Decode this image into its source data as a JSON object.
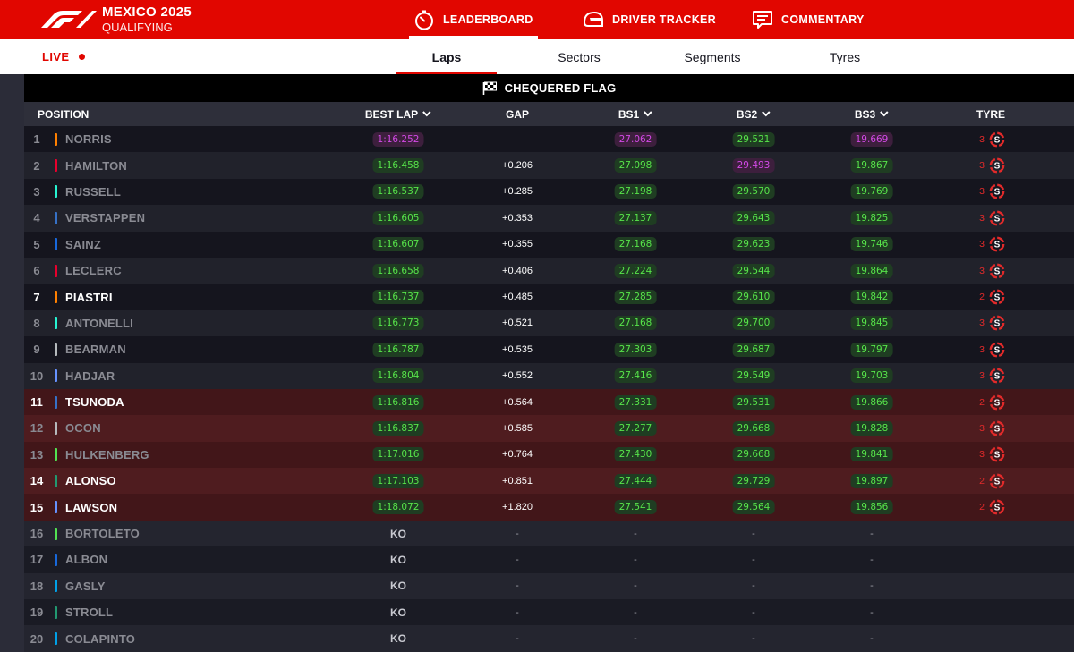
{
  "header": {
    "event_title": "MEXICO 2025",
    "session": "QUALIFYING",
    "nav": [
      {
        "label": "LEADERBOARD",
        "icon": "stopwatch-icon",
        "active": true
      },
      {
        "label": "DRIVER TRACKER",
        "icon": "helmet-icon",
        "active": false
      },
      {
        "label": "COMMENTARY",
        "icon": "chat-icon",
        "active": false
      }
    ]
  },
  "subnav": {
    "live_label": "LIVE",
    "tabs": [
      {
        "label": "Laps",
        "active": true
      },
      {
        "label": "Sectors",
        "active": false
      },
      {
        "label": "Segments",
        "active": false
      },
      {
        "label": "Tyres",
        "active": false
      }
    ]
  },
  "status": {
    "label": "CHEQUERED FLAG",
    "icon": "chequered-flag-icon"
  },
  "columns": {
    "position": "POSITION",
    "best_lap": "BEST LAP",
    "gap": "GAP",
    "bs1": "BS1",
    "bs2": "BS2",
    "bs3": "BS3",
    "tyre": "TYRE"
  },
  "colors": {
    "brand_red": "#e10600",
    "personal_best": "#57e44a",
    "fastest_overall": "#d34ae6",
    "tyre_soft": "#e22a2a"
  },
  "rows": [
    {
      "pos": "1",
      "driver": "NORRIS",
      "team_color": "#ff8000",
      "best_lap": "1:16.252",
      "best_lap_fastest": true,
      "gap": "",
      "bs1": "27.062",
      "bs1_fastest": true,
      "bs2": "29.521",
      "bs2_fastest": false,
      "bs3": "19.669",
      "bs3_fastest": true,
      "tyre_age": "3",
      "tyre": "S",
      "highlight": false,
      "eliminated": false,
      "ko": false
    },
    {
      "pos": "2",
      "driver": "HAMILTON",
      "team_color": "#e8002d",
      "best_lap": "1:16.458",
      "best_lap_fastest": false,
      "gap": "+0.206",
      "bs1": "27.098",
      "bs1_fastest": false,
      "bs2": "29.493",
      "bs2_fastest": true,
      "bs3": "19.867",
      "bs3_fastest": false,
      "tyre_age": "3",
      "tyre": "S",
      "highlight": false,
      "eliminated": false,
      "ko": false
    },
    {
      "pos": "3",
      "driver": "RUSSELL",
      "team_color": "#27f4d2",
      "best_lap": "1:16.537",
      "best_lap_fastest": false,
      "gap": "+0.285",
      "bs1": "27.198",
      "bs1_fastest": false,
      "bs2": "29.570",
      "bs2_fastest": false,
      "bs3": "19.769",
      "bs3_fastest": false,
      "tyre_age": "3",
      "tyre": "S",
      "highlight": false,
      "eliminated": false,
      "ko": false
    },
    {
      "pos": "4",
      "driver": "VERSTAPPEN",
      "team_color": "#3671c6",
      "best_lap": "1:16.605",
      "best_lap_fastest": false,
      "gap": "+0.353",
      "bs1": "27.137",
      "bs1_fastest": false,
      "bs2": "29.643",
      "bs2_fastest": false,
      "bs3": "19.825",
      "bs3_fastest": false,
      "tyre_age": "3",
      "tyre": "S",
      "highlight": false,
      "eliminated": false,
      "ko": false
    },
    {
      "pos": "5",
      "driver": "SAINZ",
      "team_color": "#1868db",
      "best_lap": "1:16.607",
      "best_lap_fastest": false,
      "gap": "+0.355",
      "bs1": "27.168",
      "bs1_fastest": false,
      "bs2": "29.623",
      "bs2_fastest": false,
      "bs3": "19.746",
      "bs3_fastest": false,
      "tyre_age": "3",
      "tyre": "S",
      "highlight": false,
      "eliminated": false,
      "ko": false
    },
    {
      "pos": "6",
      "driver": "LECLERC",
      "team_color": "#e8002d",
      "best_lap": "1:16.658",
      "best_lap_fastest": false,
      "gap": "+0.406",
      "bs1": "27.224",
      "bs1_fastest": false,
      "bs2": "29.544",
      "bs2_fastest": false,
      "bs3": "19.864",
      "bs3_fastest": false,
      "tyre_age": "3",
      "tyre": "S",
      "highlight": false,
      "eliminated": false,
      "ko": false
    },
    {
      "pos": "7",
      "driver": "PIASTRI",
      "team_color": "#ff8000",
      "best_lap": "1:16.737",
      "best_lap_fastest": false,
      "gap": "+0.485",
      "bs1": "27.285",
      "bs1_fastest": false,
      "bs2": "29.610",
      "bs2_fastest": false,
      "bs3": "19.842",
      "bs3_fastest": false,
      "tyre_age": "2",
      "tyre": "S",
      "highlight": true,
      "eliminated": false,
      "ko": false
    },
    {
      "pos": "8",
      "driver": "ANTONELLI",
      "team_color": "#27f4d2",
      "best_lap": "1:16.773",
      "best_lap_fastest": false,
      "gap": "+0.521",
      "bs1": "27.168",
      "bs1_fastest": false,
      "bs2": "29.700",
      "bs2_fastest": false,
      "bs3": "19.845",
      "bs3_fastest": false,
      "tyre_age": "3",
      "tyre": "S",
      "highlight": false,
      "eliminated": false,
      "ko": false
    },
    {
      "pos": "9",
      "driver": "BEARMAN",
      "team_color": "#b6babd",
      "best_lap": "1:16.787",
      "best_lap_fastest": false,
      "gap": "+0.535",
      "bs1": "27.303",
      "bs1_fastest": false,
      "bs2": "29.687",
      "bs2_fastest": false,
      "bs3": "19.797",
      "bs3_fastest": false,
      "tyre_age": "3",
      "tyre": "S",
      "highlight": false,
      "eliminated": false,
      "ko": false
    },
    {
      "pos": "10",
      "driver": "HADJAR",
      "team_color": "#6692ff",
      "best_lap": "1:16.804",
      "best_lap_fastest": false,
      "gap": "+0.552",
      "bs1": "27.416",
      "bs1_fastest": false,
      "bs2": "29.549",
      "bs2_fastest": false,
      "bs3": "19.703",
      "bs3_fastest": false,
      "tyre_age": "3",
      "tyre": "S",
      "highlight": false,
      "eliminated": false,
      "ko": false
    },
    {
      "pos": "11",
      "driver": "TSUNODA",
      "team_color": "#3671c6",
      "best_lap": "1:16.816",
      "best_lap_fastest": false,
      "gap": "+0.564",
      "bs1": "27.331",
      "bs1_fastest": false,
      "bs2": "29.531",
      "bs2_fastest": false,
      "bs3": "19.866",
      "bs3_fastest": false,
      "tyre_age": "2",
      "tyre": "S",
      "highlight": true,
      "eliminated": true,
      "ko": false
    },
    {
      "pos": "12",
      "driver": "OCON",
      "team_color": "#b6babd",
      "best_lap": "1:16.837",
      "best_lap_fastest": false,
      "gap": "+0.585",
      "bs1": "27.277",
      "bs1_fastest": false,
      "bs2": "29.668",
      "bs2_fastest": false,
      "bs3": "19.828",
      "bs3_fastest": false,
      "tyre_age": "3",
      "tyre": "S",
      "highlight": false,
      "eliminated": true,
      "ko": false
    },
    {
      "pos": "13",
      "driver": "HULKENBERG",
      "team_color": "#52e252",
      "best_lap": "1:17.016",
      "best_lap_fastest": false,
      "gap": "+0.764",
      "bs1": "27.430",
      "bs1_fastest": false,
      "bs2": "29.668",
      "bs2_fastest": false,
      "bs3": "19.841",
      "bs3_fastest": false,
      "tyre_age": "3",
      "tyre": "S",
      "highlight": false,
      "eliminated": true,
      "ko": false
    },
    {
      "pos": "14",
      "driver": "ALONSO",
      "team_color": "#229971",
      "best_lap": "1:17.103",
      "best_lap_fastest": false,
      "gap": "+0.851",
      "bs1": "27.444",
      "bs1_fastest": false,
      "bs2": "29.729",
      "bs2_fastest": false,
      "bs3": "19.897",
      "bs3_fastest": false,
      "tyre_age": "2",
      "tyre": "S",
      "highlight": true,
      "eliminated": true,
      "ko": false
    },
    {
      "pos": "15",
      "driver": "LAWSON",
      "team_color": "#6692ff",
      "best_lap": "1:18.072",
      "best_lap_fastest": false,
      "gap": "+1.820",
      "bs1": "27.541",
      "bs1_fastest": false,
      "bs2": "29.564",
      "bs2_fastest": false,
      "bs3": "19.856",
      "bs3_fastest": false,
      "tyre_age": "2",
      "tyre": "S",
      "highlight": true,
      "eliminated": true,
      "ko": false
    },
    {
      "pos": "16",
      "driver": "BORTOLETO",
      "team_color": "#52e252",
      "best_lap": "KO",
      "gap": "-",
      "bs1": "-",
      "bs2": "-",
      "bs3": "-",
      "tyre_age": "",
      "tyre": "",
      "highlight": false,
      "eliminated": false,
      "ko": true
    },
    {
      "pos": "17",
      "driver": "ALBON",
      "team_color": "#1868db",
      "best_lap": "KO",
      "gap": "-",
      "bs1": "-",
      "bs2": "-",
      "bs3": "-",
      "tyre_age": "",
      "tyre": "",
      "highlight": false,
      "eliminated": false,
      "ko": true
    },
    {
      "pos": "18",
      "driver": "GASLY",
      "team_color": "#00a1e8",
      "best_lap": "KO",
      "gap": "-",
      "bs1": "-",
      "bs2": "-",
      "bs3": "-",
      "tyre_age": "",
      "tyre": "",
      "highlight": false,
      "eliminated": false,
      "ko": true
    },
    {
      "pos": "19",
      "driver": "STROLL",
      "team_color": "#229971",
      "best_lap": "KO",
      "gap": "-",
      "bs1": "-",
      "bs2": "-",
      "bs3": "-",
      "tyre_age": "",
      "tyre": "",
      "highlight": false,
      "eliminated": false,
      "ko": true
    },
    {
      "pos": "20",
      "driver": "COLAPINTO",
      "team_color": "#00a1e8",
      "best_lap": "KO",
      "gap": "-",
      "bs1": "-",
      "bs2": "-",
      "bs3": "-",
      "tyre_age": "",
      "tyre": "",
      "highlight": false,
      "eliminated": false,
      "ko": true
    }
  ]
}
